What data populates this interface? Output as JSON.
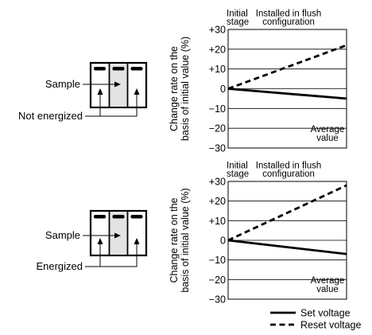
{
  "schematics": [
    {
      "label_sample": "Sample",
      "label_state": "Not energized"
    },
    {
      "label_sample": "Sample",
      "label_state": "Energized"
    }
  ],
  "legend": {
    "set": {
      "label": "Set voltage",
      "color": "#000000",
      "style": "solid"
    },
    "reset": {
      "label": "Reset voltage",
      "color": "#000000",
      "style": "dashed"
    }
  },
  "chart_data": [
    {
      "type": "line",
      "header_left": "Initial\nstage",
      "header_right": "Installed in flush\nconfiguration",
      "ylabel": "Change rate on the\nbasis of initial value (%)",
      "ylim": [
        -30,
        30
      ],
      "yticks": [
        "+30",
        "+20",
        "+10",
        "0",
        "−10",
        "−20",
        "−30"
      ],
      "grid": true,
      "annotation": "Average\nvalue",
      "x": [
        "Initial stage",
        "Installed in flush configuration"
      ],
      "series": [
        {
          "key": "set",
          "values": [
            0,
            -5
          ]
        },
        {
          "key": "reset",
          "values": [
            0,
            22
          ]
        }
      ]
    },
    {
      "type": "line",
      "header_left": "Initial\nstage",
      "header_right": "Installed in flush\nconfiguration",
      "ylabel": "Change rate on the\nbasis of initial value (%)",
      "ylim": [
        -30,
        30
      ],
      "yticks": [
        "+30",
        "+20",
        "+10",
        "0",
        "−10",
        "−20",
        "−30"
      ],
      "grid": true,
      "annotation": "Average\nvalue",
      "x": [
        "Initial stage",
        "Installed in flush configuration"
      ],
      "series": [
        {
          "key": "set",
          "values": [
            0,
            -7
          ]
        },
        {
          "key": "reset",
          "values": [
            0,
            28
          ]
        }
      ]
    }
  ]
}
